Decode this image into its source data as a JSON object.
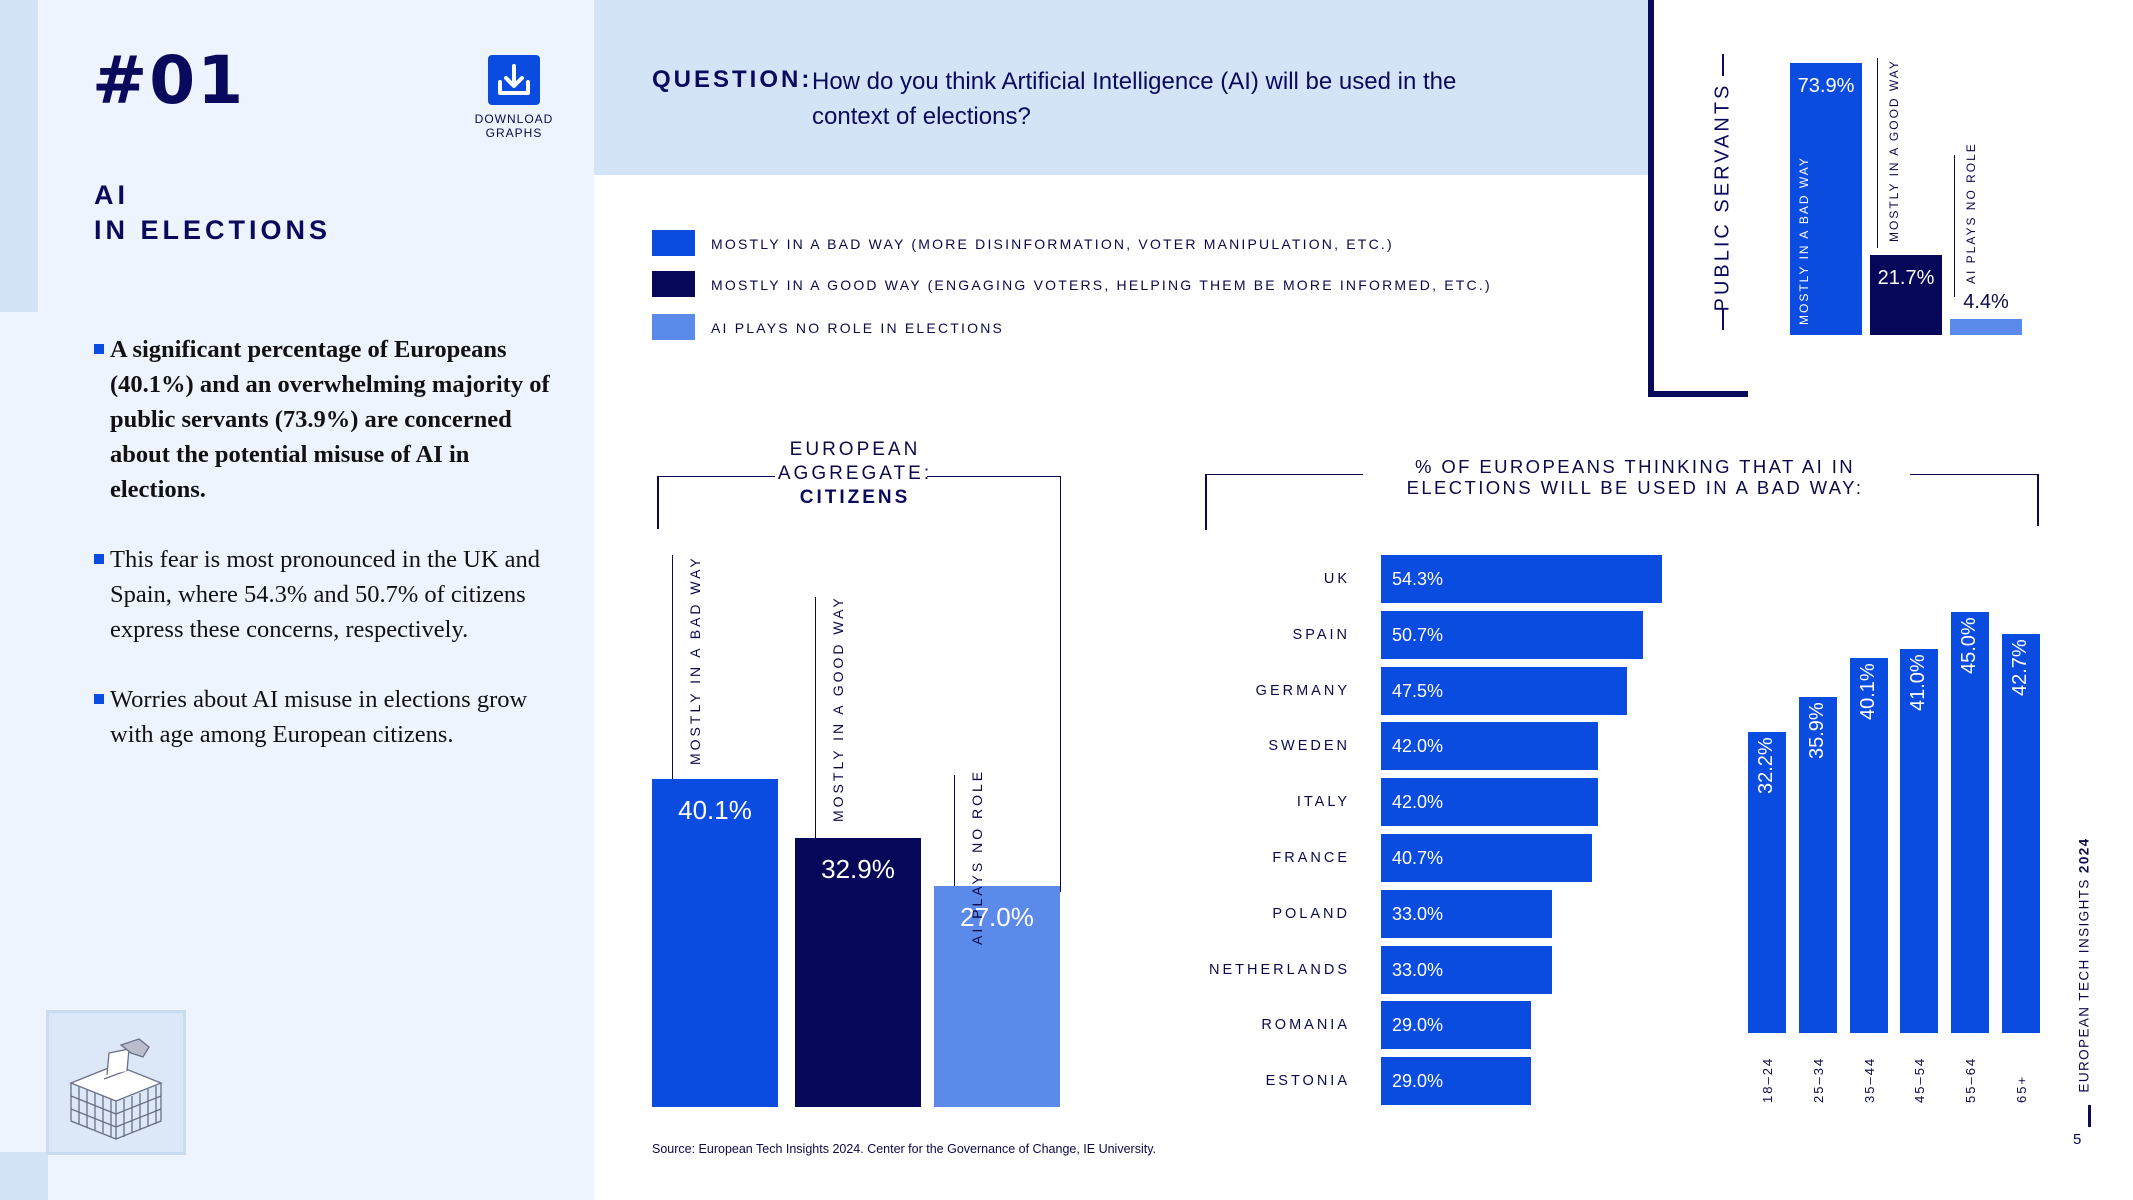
{
  "slide": {
    "number": "#01",
    "download_label_1": "DOWNLOAD",
    "download_label_2": "GRAPHS",
    "title_line1": "AI",
    "title_line2": "IN ELECTIONS",
    "bullets": [
      "A significant percentage of Europeans (40.1%) and an overwhelming majority of public servants (73.9%) are concerned about the potential misuse of AI in elections.",
      "This fear is most pronounced in the UK and Spain, where 54.3% and 50.7% of citizens express these concerns, respectively.",
      "Worries about AI misuse in elections grow with age among European citizens."
    ],
    "question_label": "QUESTION:",
    "question_text": "How do you think Artificial Intelligence (AI) will be used in the context of elections?",
    "source": "Source: European Tech Insights 2024. Center for the Governance of Change, IE University.",
    "brand_prefix": "EUROPEAN TECH INSIGHTS ",
    "brand_year": "2024",
    "page_number": "5"
  },
  "colors": {
    "bad": "#0b4ce0",
    "good": "#07075a",
    "no_role": "#5b8aea",
    "ink": "#0a0a5c"
  },
  "legend": [
    {
      "label": "MOSTLY IN A BAD WAY (MORE DISINFORMATION, VOTER MANIPULATION, ETC.)",
      "color": "#0b4ce0"
    },
    {
      "label": "MOSTLY IN A GOOD WAY (ENGAGING VOTERS, HELPING THEM BE MORE INFORMED, ETC.)",
      "color": "#07075a"
    },
    {
      "label": "AI PLAYS NO ROLE IN ELECTIONS",
      "color": "#5b8aea"
    }
  ],
  "chart_data": [
    {
      "type": "bar",
      "id": "public_servants",
      "title": "PUBLIC SERVANTS",
      "categories": [
        "MOSTLY IN A BAD WAY",
        "MOSTLY IN A GOOD WAY",
        "AI PLAYS NO ROLE"
      ],
      "values": [
        73.9,
        21.7,
        4.4
      ],
      "value_labels": [
        "73.9%",
        "21.7%",
        "4.4%"
      ],
      "ylim": [
        0,
        75
      ]
    },
    {
      "type": "bar",
      "id": "citizens",
      "title_line1": "EUROPEAN",
      "title_line2": "AGGREGATE:",
      "title_line3": "CITIZENS",
      "categories": [
        "MOSTLY IN A BAD WAY",
        "MOSTLY IN A GOOD WAY",
        "AI PLAYS NO ROLE"
      ],
      "values": [
        40.1,
        32.9,
        27.0
      ],
      "value_labels": [
        "40.1%",
        "32.9%",
        "27.0%"
      ],
      "ylim": [
        0,
        40.1
      ]
    },
    {
      "type": "bar",
      "orientation": "horizontal",
      "id": "countries",
      "title": "% OF EUROPEANS THINKING THAT AI IN ELECTIONS WILL BE USED IN A BAD WAY:",
      "categories": [
        "UK",
        "SPAIN",
        "GERMANY",
        "SWEDEN",
        "ITALY",
        "FRANCE",
        "POLAND",
        "NETHERLANDS",
        "ROMANIA",
        "ESTONIA"
      ],
      "values": [
        54.3,
        50.7,
        47.5,
        42.0,
        42.0,
        40.7,
        33.0,
        33.0,
        29.0,
        29.0
      ],
      "value_labels": [
        "54.3%",
        "50.7%",
        "47.5%",
        "42.0%",
        "42.0%",
        "40.7%",
        "33.0%",
        "33.0%",
        "29.0%",
        "29.0%"
      ],
      "xlim": [
        0,
        54.3
      ]
    },
    {
      "type": "bar",
      "id": "age_groups",
      "categories": [
        "18–24",
        "25–34",
        "35–44",
        "45–54",
        "55–64",
        "65+"
      ],
      "values": [
        32.2,
        35.9,
        40.1,
        41.0,
        45.0,
        42.7
      ],
      "value_labels": [
        "32.2%",
        "35.9%",
        "40.1%",
        "41.0%",
        "45.0%",
        "42.7%"
      ],
      "ylim": [
        0,
        45.0
      ]
    }
  ]
}
